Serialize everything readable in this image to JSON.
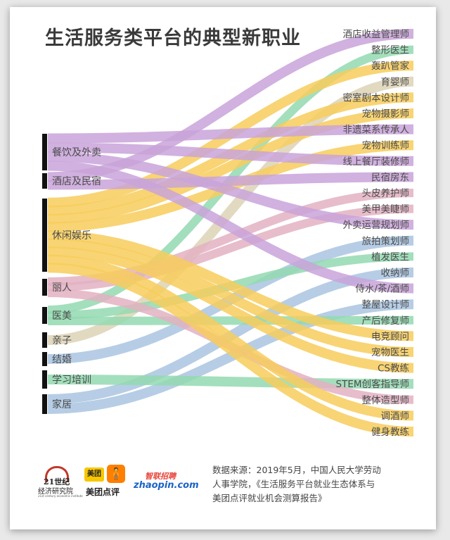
{
  "title": "生活服务类平台的典型新职业",
  "source_note": {
    "line1": "数据来源：2019年5月，中国人民大学劳动",
    "line2": "人事学院，《生活服务平台就业生态体系与",
    "line3": "美团点评就业机会测算报告》"
  },
  "logos": {
    "logo21_main": "21世纪",
    "logo21_sub": "经济研究院",
    "logo21_tiny": "21st century economic institute",
    "meituan_badge": "美团",
    "meituan_name": "美团点评",
    "zhaopin_cn": "智联招聘",
    "zhaopin_en": "zhaopin.com"
  },
  "colors": {
    "purple": "#c9a3d9",
    "yellow": "#f7cd5c",
    "green": "#93d9b0",
    "blue": "#a9c4e0",
    "pink": "#e3b1c2",
    "beige": "#ddd2b6",
    "bar": "#111111"
  },
  "sources": [
    {
      "id": "food",
      "label": "餐饮及外卖",
      "span": [
        180,
        232
      ]
    },
    {
      "id": "hotel",
      "label": "酒店及民宿",
      "span": [
        236,
        258
      ]
    },
    {
      "id": "leisure",
      "label": "休闲娱乐",
      "span": [
        272,
        376
      ]
    },
    {
      "id": "beauty",
      "label": "丽人",
      "span": [
        386,
        410
      ]
    },
    {
      "id": "medical",
      "label": "医美",
      "span": [
        426,
        450
      ]
    },
    {
      "id": "parent",
      "label": "亲子",
      "span": [
        462,
        484
      ]
    },
    {
      "id": "wedding",
      "label": "结婚",
      "span": [
        490,
        510
      ]
    },
    {
      "id": "training",
      "label": "学习培训",
      "span": [
        516,
        542
      ]
    },
    {
      "id": "home",
      "label": "家居",
      "span": [
        550,
        578
      ]
    }
  ],
  "jobs": [
    "酒店收益管理师",
    "整形医生",
    "轰趴管家",
    "育婴师",
    "密室剧本设计师",
    "宠物摄影师",
    "非遗菜系传承人",
    "宠物训练师",
    "线上餐厅装修师",
    "民宿房东",
    "头皮养护师",
    "美甲美睫师",
    "外卖运营规划师",
    "旅拍策划师",
    "植发医生",
    "收纳师",
    "侍水/茶/酒师",
    "整屋设计师",
    "产后修复师",
    "电竞顾问",
    "宠物医生",
    "CS教练",
    "STEM创客指导师",
    "整体造型师",
    "调酒师",
    "健身教练"
  ],
  "flows": [
    {
      "from": "hotel",
      "to": 0,
      "color": "purple"
    },
    {
      "from": "medical",
      "to": 1,
      "color": "green"
    },
    {
      "from": "leisure",
      "to": 2,
      "color": "yellow"
    },
    {
      "from": "parent",
      "to": 3,
      "color": "beige"
    },
    {
      "from": "leisure",
      "to": 4,
      "color": "yellow"
    },
    {
      "from": "leisure",
      "to": 5,
      "color": "yellow"
    },
    {
      "from": "food",
      "to": 6,
      "color": "purple"
    },
    {
      "from": "leisure",
      "to": 7,
      "color": "yellow"
    },
    {
      "from": "food",
      "to": 8,
      "color": "purple"
    },
    {
      "from": "hotel",
      "to": 9,
      "color": "purple"
    },
    {
      "from": "beauty",
      "to": 10,
      "color": "pink"
    },
    {
      "from": "beauty",
      "to": 11,
      "color": "pink"
    },
    {
      "from": "food",
      "to": 12,
      "color": "purple"
    },
    {
      "from": "wedding",
      "to": 13,
      "color": "blue"
    },
    {
      "from": "medical",
      "to": 14,
      "color": "green"
    },
    {
      "from": "home",
      "to": 15,
      "color": "blue"
    },
    {
      "from": "food",
      "to": 16,
      "color": "purple"
    },
    {
      "from": "home",
      "to": 17,
      "color": "blue"
    },
    {
      "from": "medical",
      "to": 18,
      "color": "green"
    },
    {
      "from": "leisure",
      "to": 19,
      "color": "yellow"
    },
    {
      "from": "leisure",
      "to": 20,
      "color": "yellow"
    },
    {
      "from": "leisure",
      "to": 21,
      "color": "yellow"
    },
    {
      "from": "training",
      "to": 22,
      "color": "green"
    },
    {
      "from": "beauty",
      "to": 23,
      "color": "pink"
    },
    {
      "from": "leisure",
      "to": 24,
      "color": "yellow"
    },
    {
      "from": "leisure",
      "to": 25,
      "color": "yellow"
    }
  ]
}
